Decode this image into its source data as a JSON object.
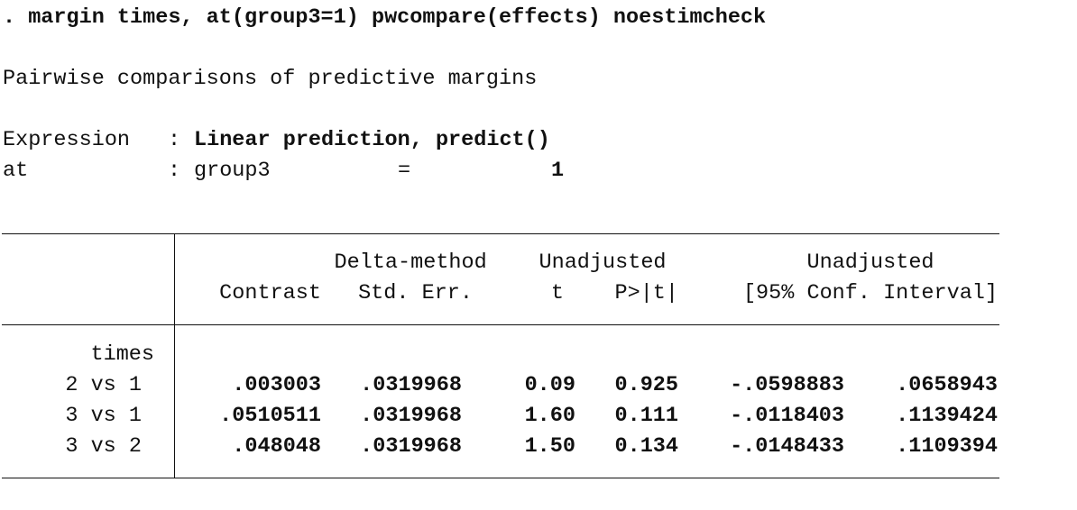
{
  "command": ". margin times, at(group3=1) pwcompare(effects) noestimcheck",
  "title": "Pairwise comparisons of predictive margins",
  "expression": {
    "label": "Expression",
    "sep": ":",
    "value": "Linear prediction, predict()"
  },
  "at": {
    "label": "at",
    "sep": ":",
    "variable": "group3",
    "operator": "=",
    "value": "1"
  },
  "table": {
    "header_top": [
      "Delta-method",
      "Unadjusted",
      "Unadjusted"
    ],
    "header": [
      "Contrast",
      "Std. Err.",
      "t",
      "P>|t|",
      "[95% Conf. Interval]"
    ],
    "group": "times",
    "rows": [
      {
        "label": "2 vs 1",
        "cells": [
          ".003003",
          ".0319968",
          "0.09",
          "0.925",
          "-.0598883",
          ".0658943"
        ]
      },
      {
        "label": "3 vs 1",
        "cells": [
          ".0510511",
          ".0319968",
          "1.60",
          "0.111",
          "-.0118403",
          ".1139424"
        ]
      },
      {
        "label": "3 vs 2",
        "cells": [
          ".048048",
          ".0319968",
          "1.50",
          "0.134",
          "-.0148433",
          ".1109394"
        ]
      }
    ]
  }
}
